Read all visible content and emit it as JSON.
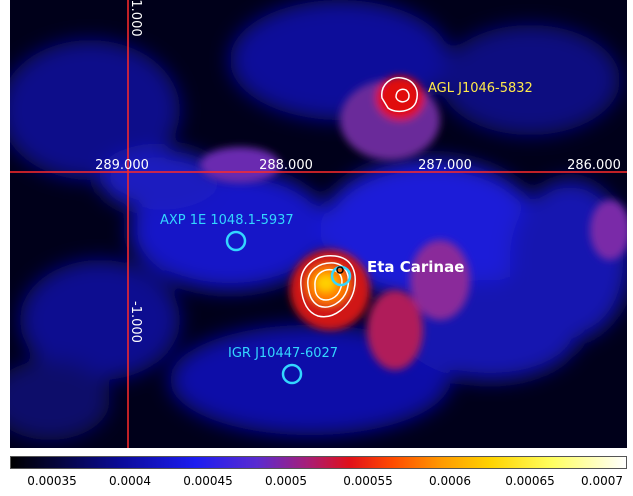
{
  "axes": {
    "x_ticks": [
      "289.000",
      "288.000",
      "287.000",
      "286.000"
    ],
    "y_ticks": [
      "1.000",
      "-1.000"
    ]
  },
  "sources": {
    "agl": "AGL J1046-5832",
    "axp": "AXP 1E 1048.1-5937",
    "eta": "Eta Carinae",
    "igr": "IGR J10447-6027"
  },
  "colorbar": {
    "ticks": [
      "0.00035",
      "0.0004",
      "0.00045",
      "0.0005",
      "0.00055",
      "0.0006",
      "0.00065",
      "0.0007"
    ]
  },
  "colors": {
    "axis_line": "#ff2a2a",
    "marker_circle": "#33d6ff",
    "contour": "#ffffff",
    "agl_label": "#ffe94a"
  }
}
